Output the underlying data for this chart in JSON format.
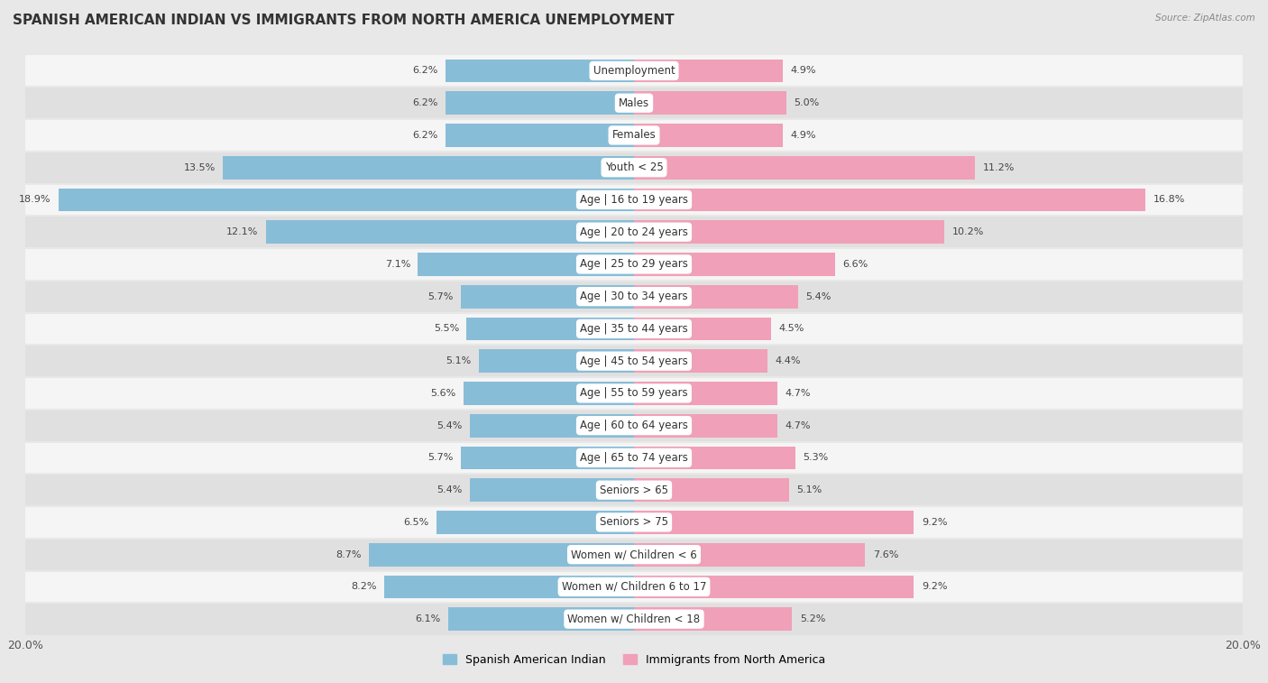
{
  "title": "SPANISH AMERICAN INDIAN VS IMMIGRANTS FROM NORTH AMERICA UNEMPLOYMENT",
  "source": "Source: ZipAtlas.com",
  "categories": [
    "Unemployment",
    "Males",
    "Females",
    "Youth < 25",
    "Age | 16 to 19 years",
    "Age | 20 to 24 years",
    "Age | 25 to 29 years",
    "Age | 30 to 34 years",
    "Age | 35 to 44 years",
    "Age | 45 to 54 years",
    "Age | 55 to 59 years",
    "Age | 60 to 64 years",
    "Age | 65 to 74 years",
    "Seniors > 65",
    "Seniors > 75",
    "Women w/ Children < 6",
    "Women w/ Children 6 to 17",
    "Women w/ Children < 18"
  ],
  "left_values": [
    6.2,
    6.2,
    6.2,
    13.5,
    18.9,
    12.1,
    7.1,
    5.7,
    5.5,
    5.1,
    5.6,
    5.4,
    5.7,
    5.4,
    6.5,
    8.7,
    8.2,
    6.1
  ],
  "right_values": [
    4.9,
    5.0,
    4.9,
    11.2,
    16.8,
    10.2,
    6.6,
    5.4,
    4.5,
    4.4,
    4.7,
    4.7,
    5.3,
    5.1,
    9.2,
    7.6,
    9.2,
    5.2
  ],
  "left_color": "#88bdd8",
  "right_color": "#f0a0b8",
  "left_label": "Spanish American Indian",
  "right_label": "Immigrants from North America",
  "xlim": 20.0,
  "bg_color": "#e8e8e8",
  "row_bg_even": "#f5f5f5",
  "row_bg_odd": "#e0e0e0",
  "title_fontsize": 11,
  "label_fontsize": 8.5,
  "value_fontsize": 8
}
